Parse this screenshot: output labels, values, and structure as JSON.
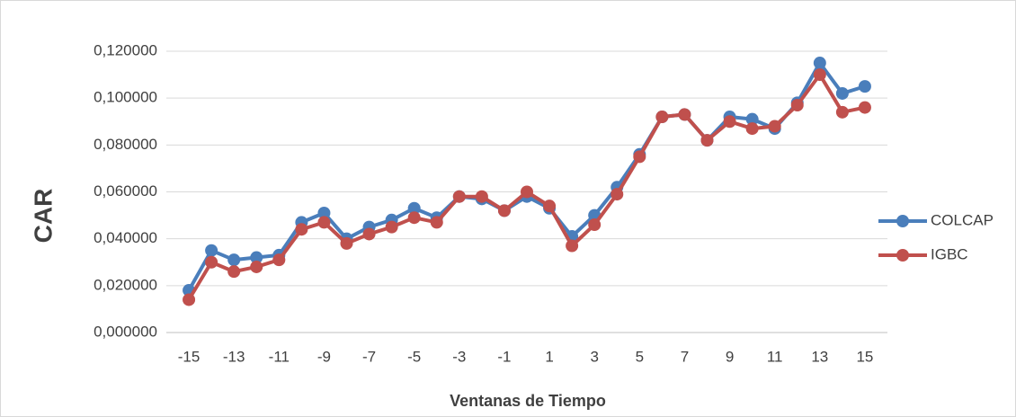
{
  "chart_data": {
    "type": "line",
    "x_label": "Ventanas de Tiempo",
    "y_label": "CAR",
    "x": [
      -15,
      -14,
      -13,
      -12,
      -11,
      -10,
      -9,
      -8,
      -7,
      -6,
      -5,
      -4,
      -3,
      -2,
      -1,
      0,
      1,
      2,
      3,
      4,
      5,
      6,
      7,
      8,
      9,
      10,
      11,
      12,
      13,
      14,
      15
    ],
    "series": [
      {
        "name": "COLCAP",
        "color": "#4a7ebb",
        "values": [
          0.018,
          0.035,
          0.031,
          0.032,
          0.033,
          0.047,
          0.051,
          0.04,
          0.045,
          0.048,
          0.053,
          0.049,
          0.058,
          0.057,
          0.052,
          0.058,
          0.053,
          0.041,
          0.05,
          0.062,
          0.076,
          0.092,
          0.093,
          0.082,
          0.092,
          0.091,
          0.087,
          0.098,
          0.115,
          0.102,
          0.105
        ]
      },
      {
        "name": "IGBC",
        "color": "#c0504d",
        "values": [
          0.014,
          0.03,
          0.026,
          0.028,
          0.031,
          0.044,
          0.047,
          0.038,
          0.042,
          0.045,
          0.049,
          0.047,
          0.058,
          0.058,
          0.052,
          0.06,
          0.054,
          0.037,
          0.046,
          0.059,
          0.075,
          0.092,
          0.093,
          0.082,
          0.09,
          0.087,
          0.088,
          0.097,
          0.11,
          0.094,
          0.096
        ]
      }
    ],
    "xlim": [
      -16,
      16
    ],
    "xticks": [
      -15,
      -13,
      -11,
      -9,
      -7,
      -5,
      -3,
      -1,
      1,
      3,
      5,
      7,
      9,
      11,
      13,
      15
    ],
    "ylim": [
      0,
      0.12
    ],
    "yticks": [
      {
        "value": 0,
        "label": "0,000000"
      },
      {
        "value": 0.02,
        "label": "0,020000"
      },
      {
        "value": 0.04,
        "label": "0,040000"
      },
      {
        "value": 0.06,
        "label": "0,060000"
      },
      {
        "value": 0.08,
        "label": "0,080000"
      },
      {
        "value": 0.1,
        "label": "0,100000"
      },
      {
        "value": 0.12,
        "label": "0,120000"
      }
    ],
    "grid": true,
    "legend": "right"
  }
}
